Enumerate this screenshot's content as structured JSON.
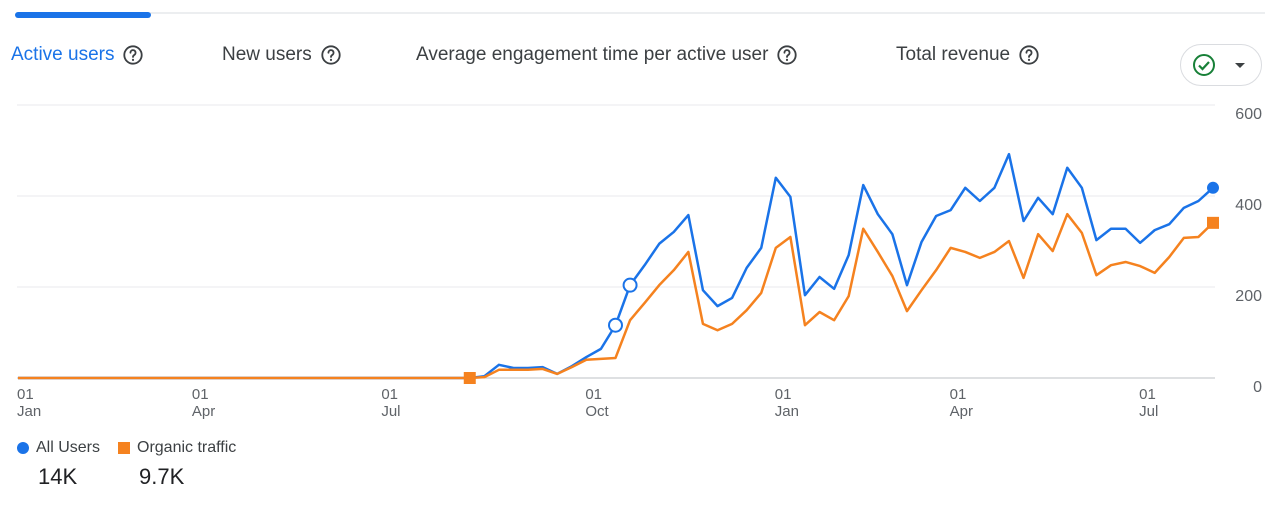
{
  "tabs": [
    "Active users",
    "New users",
    "Average engagement time per active user",
    "Total revenue"
  ],
  "chart_data": {
    "type": "line",
    "categories": [
      "01\nJan",
      null,
      null,
      null,
      null,
      null,
      null,
      null,
      null,
      null,
      null,
      null,
      "01\nApr",
      null,
      null,
      null,
      null,
      null,
      null,
      null,
      null,
      null,
      null,
      null,
      null,
      "01\nJul",
      null,
      null,
      null,
      null,
      null,
      null,
      null,
      null,
      null,
      null,
      null,
      null,
      null,
      "01\nOct",
      null,
      null,
      null,
      null,
      null,
      null,
      null,
      null,
      null,
      null,
      null,
      null,
      "01\nJan",
      null,
      null,
      null,
      null,
      null,
      null,
      null,
      null,
      null,
      null,
      null,
      "01\nApr",
      null,
      null,
      null,
      null,
      null,
      null,
      null,
      null,
      null,
      null,
      null,
      null,
      "01\nJul",
      null,
      null,
      null,
      null,
      null
    ],
    "series": [
      {
        "name": "All Users",
        "color": "#1a73e8",
        "total": "14K",
        "values": [
          0,
          0,
          0,
          0,
          0,
          0,
          0,
          0,
          0,
          0,
          0,
          0,
          0,
          0,
          0,
          0,
          0,
          0,
          0,
          0,
          0,
          0,
          0,
          0,
          0,
          0,
          0,
          0,
          0,
          0,
          0,
          0,
          4,
          29,
          22,
          22,
          24,
          9,
          26,
          46,
          64,
          116,
          204,
          248,
          295,
          321,
          358,
          193,
          158,
          176,
          242,
          286,
          440,
          398,
          182,
          222,
          196,
          270,
          424,
          360,
          316,
          204,
          299,
          356,
          369,
          418,
          389,
          418,
          492,
          345,
          396,
          360,
          462,
          418,
          303,
          328,
          328,
          297,
          325,
          338,
          374,
          389,
          418
        ]
      },
      {
        "name": "Organic traffic",
        "color": "#f5821f",
        "total": "9.7K",
        "values": [
          0,
          0,
          0,
          0,
          0,
          0,
          0,
          0,
          0,
          0,
          0,
          0,
          0,
          0,
          0,
          0,
          0,
          0,
          0,
          0,
          0,
          0,
          0,
          0,
          0,
          0,
          0,
          0,
          0,
          0,
          0,
          0,
          2,
          18,
          18,
          18,
          20,
          9,
          24,
          40,
          42,
          44,
          127,
          165,
          204,
          237,
          277,
          119,
          105,
          119,
          149,
          187,
          286,
          310,
          116,
          145,
          127,
          180,
          328,
          277,
          224,
          147,
          193,
          237,
          286,
          277,
          264,
          277,
          301,
          220,
          316,
          279,
          360,
          319,
          226,
          248,
          255,
          246,
          231,
          266,
          308,
          310,
          341
        ]
      }
    ],
    "ylim": [
      0,
      600
    ],
    "yticks": [
      0,
      200,
      400,
      600
    ],
    "grid": true
  }
}
